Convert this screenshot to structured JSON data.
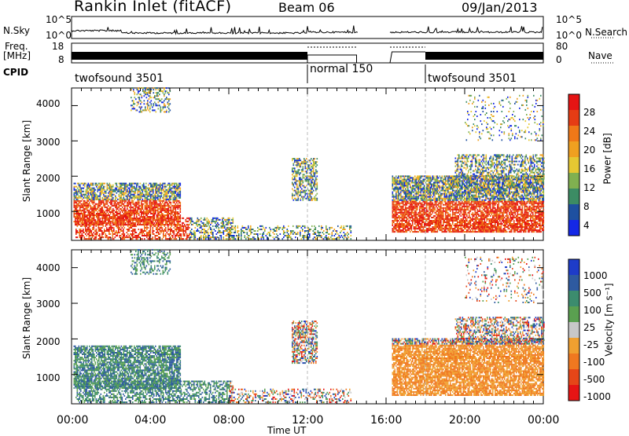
{
  "header": {
    "site": "Rankin Inlet (fitACF)",
    "beam": "Beam 06",
    "date": "09/Jan/2013"
  },
  "left_labels": {
    "nsky": "N.Sky",
    "freq": "Freq.",
    "freq_unit": "[MHz]",
    "cpid": "CPID"
  },
  "right_labels": {
    "nsearch": "N.Search",
    "nave": "Nave"
  },
  "small_axes": {
    "noise_left": [
      "10^5",
      "10^0"
    ],
    "noise_right": [
      "10^5",
      "10^0"
    ],
    "freq_left": [
      "18",
      "8"
    ],
    "freq_right": [
      "80",
      "0"
    ]
  },
  "cpid_segments": [
    {
      "label": "twofsound 3501",
      "start_h": 0,
      "end_h": 12.0
    },
    {
      "label": "normal 150",
      "start_h": 12.0,
      "end_h": 18.0
    },
    {
      "label": "twofsound 3501",
      "start_h": 18.0,
      "end_h": 24.0
    }
  ],
  "x_axis": {
    "label": "Time UT",
    "ticks": [
      "00:00",
      "04:00",
      "08:00",
      "12:00",
      "16:00",
      "20:00",
      "00:00"
    ]
  },
  "chart_data": [
    {
      "type": "heatmap",
      "name": "Power",
      "ylabel": "Slant Range [km]",
      "xlabel": "Time UT",
      "xlim_hours": [
        0,
        24
      ],
      "ylim_km": [
        180,
        4500
      ],
      "y_ticks": [
        1000,
        2000,
        3000,
        4000
      ],
      "colorbar": {
        "label": "Power [dB]",
        "ticks": [
          "4",
          "8",
          "12",
          "16",
          "20",
          "24",
          "28"
        ],
        "colors": [
          "#1428e6",
          "#1e50a0",
          "#3c8c64",
          "#80b050",
          "#e6c832",
          "#f0a020",
          "#f07818",
          "#e63c14",
          "#e61414"
        ]
      }
    },
    {
      "type": "heatmap",
      "name": "Velocity",
      "ylabel": "Slant Range [km]",
      "xlabel": "Time UT",
      "xlim_hours": [
        0,
        24
      ],
      "ylim_km": [
        180,
        4500
      ],
      "y_ticks": [
        1000,
        2000,
        3000,
        4000
      ],
      "colorbar": {
        "label": "Velocity [m s⁻¹]",
        "ticks": [
          "1000",
          "500",
          "100",
          "25",
          "-25",
          "-100",
          "-500",
          "-1000"
        ],
        "colors": [
          "#1e3cc8",
          "#2e5aa0",
          "#3c8c6e",
          "#5aa050",
          "#c8c8c8",
          "#f0a030",
          "#f07820",
          "#e64618",
          "#e61414"
        ]
      }
    }
  ]
}
